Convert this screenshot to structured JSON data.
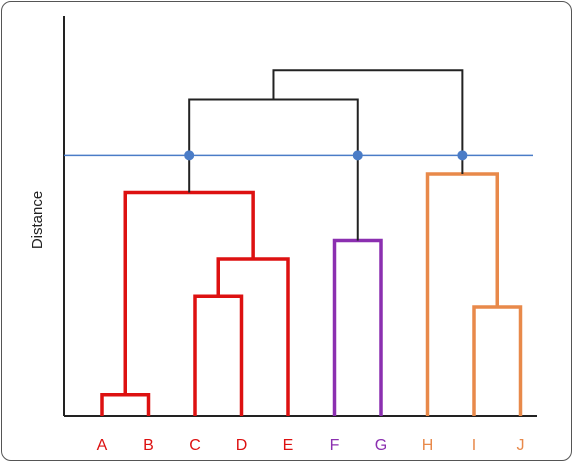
{
  "chart_data": {
    "type": "dendrogram",
    "ylabel": "Distance",
    "leaves": [
      {
        "label": "A",
        "color": "#dd1111"
      },
      {
        "label": "B",
        "color": "#dd1111"
      },
      {
        "label": "C",
        "color": "#dd1111"
      },
      {
        "label": "D",
        "color": "#dd1111"
      },
      {
        "label": "E",
        "color": "#dd1111"
      },
      {
        "label": "F",
        "color": "#8b2fb0"
      },
      {
        "label": "G",
        "color": "#8b2fb0"
      },
      {
        "label": "H",
        "color": "#e8894a"
      },
      {
        "label": "I",
        "color": "#e8894a"
      },
      {
        "label": "J",
        "color": "#e8894a"
      }
    ],
    "merges": [
      {
        "left": "A",
        "right": "B",
        "height": 0.08,
        "color": "#dd1111"
      },
      {
        "left": "C",
        "right": "D",
        "height": 0.45,
        "color": "#dd1111"
      },
      {
        "left": "CD",
        "right": "E",
        "height": 0.59,
        "color": "#dd1111"
      },
      {
        "left": "AB",
        "right": "CDE",
        "height": 0.84,
        "color": "#dd1111"
      },
      {
        "left": "F",
        "right": "G",
        "height": 0.66,
        "color": "#8b2fb0"
      },
      {
        "left": "I",
        "right": "J",
        "height": 0.41,
        "color": "#e8894a"
      },
      {
        "left": "H",
        "right": "IJ",
        "height": 0.91,
        "color": "#e8894a"
      },
      {
        "left": "ABCDE",
        "right": "FG",
        "height": 1.19,
        "color": "#222222"
      },
      {
        "left": "ABCDEFG",
        "right": "HIJ",
        "height": 1.3,
        "color": "#222222"
      }
    ],
    "cut_height": 0.98,
    "cut_color": "#4a7cc7",
    "marker_color": "#4a7cc7",
    "axis_color": "#222222"
  }
}
